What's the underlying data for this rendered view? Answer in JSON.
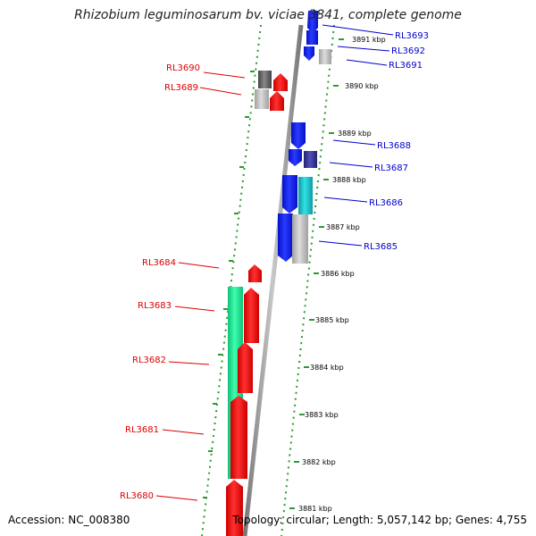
{
  "title": "Rhizobium leguminosarum bv. viciae 3841, complete genome",
  "footer": {
    "accession": "Accession: NC_008380",
    "summary": "Topology: circular; Length: 5,057,142 bp; Genes: 4,755"
  },
  "colors": {
    "forward_label": "#0000cc",
    "reverse_label": "#dd0000",
    "blue": "#0a14ee",
    "navy": "#3a3aa0",
    "cyan": "#19c3c8",
    "green": "#22ee99",
    "red": "#ff1010",
    "gray": "#bbbbbb",
    "darkgray": "#666666",
    "tick": "#2e9a2e"
  },
  "scale_ticks": [
    "3891 kbp",
    "3890 kbp",
    "3889 kbp",
    "3888 kbp",
    "3887 kbp",
    "3886 kbp",
    "3885 kbp",
    "3884 kbp",
    "3883 kbp",
    "3882 kbp",
    "3881 kbp"
  ],
  "genes_forward": [
    "RL3693",
    "RL3692",
    "RL3691",
    "RL3688",
    "RL3687",
    "RL3686",
    "RL3685"
  ],
  "genes_reverse": [
    "RL3690",
    "RL3689",
    "RL3684",
    "RL3683",
    "RL3682",
    "RL3681",
    "RL3680"
  ]
}
